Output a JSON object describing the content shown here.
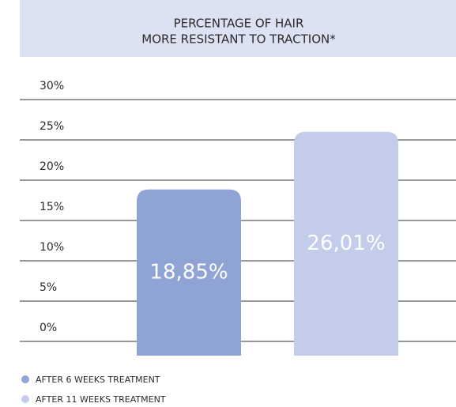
{
  "chart_data": {
    "type": "bar",
    "title_lines": [
      "PERCENTAGE OF HAIR",
      "MORE RESISTANT TO TRACTION*"
    ],
    "categories": [
      null
    ],
    "series": [
      {
        "name": "AFTER 6 WEEKS TREATMENT",
        "color": "#8fa3d5",
        "values": [
          18.85
        ],
        "value_labels": [
          "18,85%"
        ]
      },
      {
        "name": "AFTER 11 WEEKS TREATMENT",
        "color": "#c3cceb",
        "values": [
          26.01
        ],
        "value_labels": [
          "26,01%"
        ]
      }
    ],
    "ylim": [
      0,
      30
    ],
    "yticks": [
      {
        "value": 0,
        "label": "0%"
      },
      {
        "value": 5,
        "label": "5%"
      },
      {
        "value": 10,
        "label": "10%"
      },
      {
        "value": 15,
        "label": "15%"
      },
      {
        "value": 20,
        "label": "20%"
      },
      {
        "value": 25,
        "label": "25%"
      },
      {
        "value": 30,
        "label": "30%"
      }
    ],
    "grid": true,
    "legend": "bottom-left"
  }
}
